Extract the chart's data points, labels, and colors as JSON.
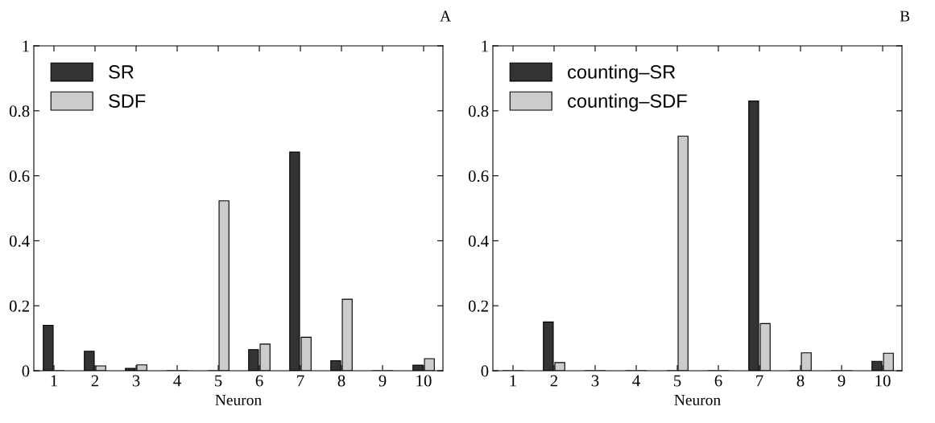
{
  "chart_data": [
    {
      "type": "bar",
      "title": "A",
      "xlabel": "Neuron",
      "categories": [
        "1",
        "2",
        "3",
        "4",
        "5",
        "6",
        "7",
        "8",
        "9",
        "10"
      ],
      "ylim": [
        0,
        1
      ],
      "yticks": [
        0,
        0.2,
        0.4,
        0.6,
        0.8,
        1
      ],
      "legend": "top left",
      "grid": false,
      "series": [
        {
          "name": "SR",
          "color": "#333333",
          "values": [
            0.14,
            0.06,
            0.007,
            0,
            null,
            0.065,
            0.673,
            0.031,
            0,
            0.017
          ]
        },
        {
          "name": "SDF",
          "color": "#cccccc",
          "values": [
            0,
            0.015,
            0.018,
            0,
            0.523,
            0.082,
            0.103,
            0.22,
            0,
            0.037
          ]
        }
      ]
    },
    {
      "type": "bar",
      "title": "B",
      "xlabel": "Neuron",
      "categories": [
        "1",
        "2",
        "3",
        "4",
        "5",
        "6",
        "7",
        "8",
        "9",
        "10"
      ],
      "ylim": [
        0,
        1
      ],
      "yticks": [
        0,
        0.2,
        0.4,
        0.6,
        0.8,
        1
      ],
      "legend": "top left",
      "grid": false,
      "series": [
        {
          "name": "counting–SR",
          "color": "#333333",
          "values": [
            0,
            0.15,
            0,
            0,
            0,
            0,
            0.83,
            0,
            0,
            0.029
          ]
        },
        {
          "name": "counting–SDF",
          "color": "#cccccc",
          "values": [
            0,
            0.025,
            0,
            0,
            0.722,
            0,
            0.145,
            0.055,
            0,
            0.054
          ]
        }
      ]
    }
  ]
}
